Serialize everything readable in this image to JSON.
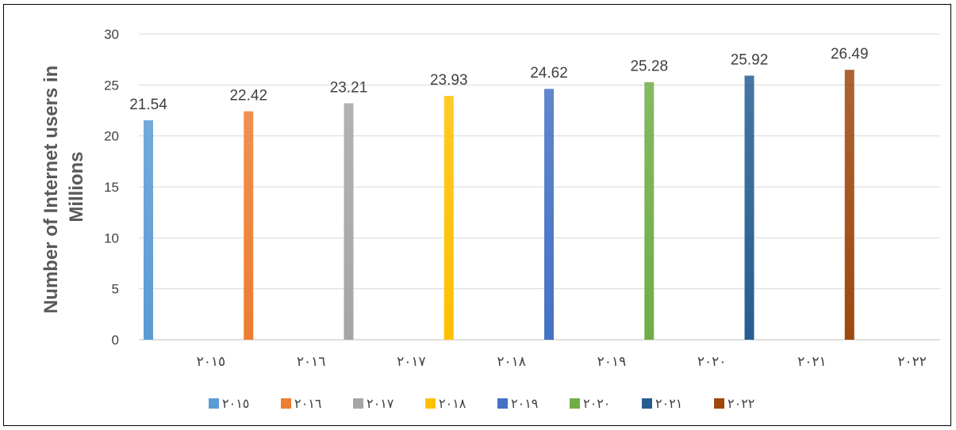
{
  "chart_data": {
    "type": "bar",
    "title": "",
    "xlabel": "",
    "ylabel": "Number of Internet users in Millions",
    "ylabel_lines": [
      "Number of Internet users in",
      "Millions"
    ],
    "ylim": [
      0,
      30
    ],
    "yticks": [
      0,
      5,
      10,
      15,
      20,
      25,
      30
    ],
    "grid": true,
    "legend_position": "bottom",
    "categories": [
      "٢٠١٥",
      "٢٠١٦",
      "٢٠١٧",
      "٢٠١٨",
      "٢٠١٩",
      "٢٠٢٠",
      "٢٠٢١",
      "٢٠٢٢"
    ],
    "series": [
      {
        "name": "٢٠١٥",
        "color": "#5B9BD5",
        "values": [
          21.54,
          null,
          null,
          null,
          null,
          null,
          null,
          null
        ]
      },
      {
        "name": "٢٠١٦",
        "color": "#ED7D31",
        "values": [
          null,
          22.42,
          null,
          null,
          null,
          null,
          null,
          null
        ]
      },
      {
        "name": "٢٠١٧",
        "color": "#A5A5A5",
        "values": [
          null,
          null,
          23.21,
          null,
          null,
          null,
          null,
          null
        ]
      },
      {
        "name": "٢٠١٨",
        "color": "#FFC000",
        "values": [
          null,
          null,
          null,
          23.93,
          null,
          null,
          null,
          null
        ]
      },
      {
        "name": "٢٠١٩",
        "color": "#4472C4",
        "values": [
          null,
          null,
          null,
          null,
          24.62,
          null,
          null,
          null
        ]
      },
      {
        "name": "٢٠٢٠",
        "color": "#70AD47",
        "values": [
          null,
          null,
          null,
          null,
          null,
          25.28,
          null,
          null
        ]
      },
      {
        "name": "٢٠٢١",
        "color": "#255E91",
        "values": [
          null,
          null,
          null,
          null,
          null,
          null,
          25.92,
          null
        ]
      },
      {
        "name": "٢٠٢٢",
        "color": "#9E480E",
        "values": [
          null,
          null,
          null,
          null,
          null,
          null,
          null,
          26.49
        ]
      }
    ],
    "data_labels": [
      "21.54",
      "22.42",
      "23.21",
      "23.93",
      "24.62",
      "25.28",
      "25.92",
      "26.49"
    ]
  }
}
